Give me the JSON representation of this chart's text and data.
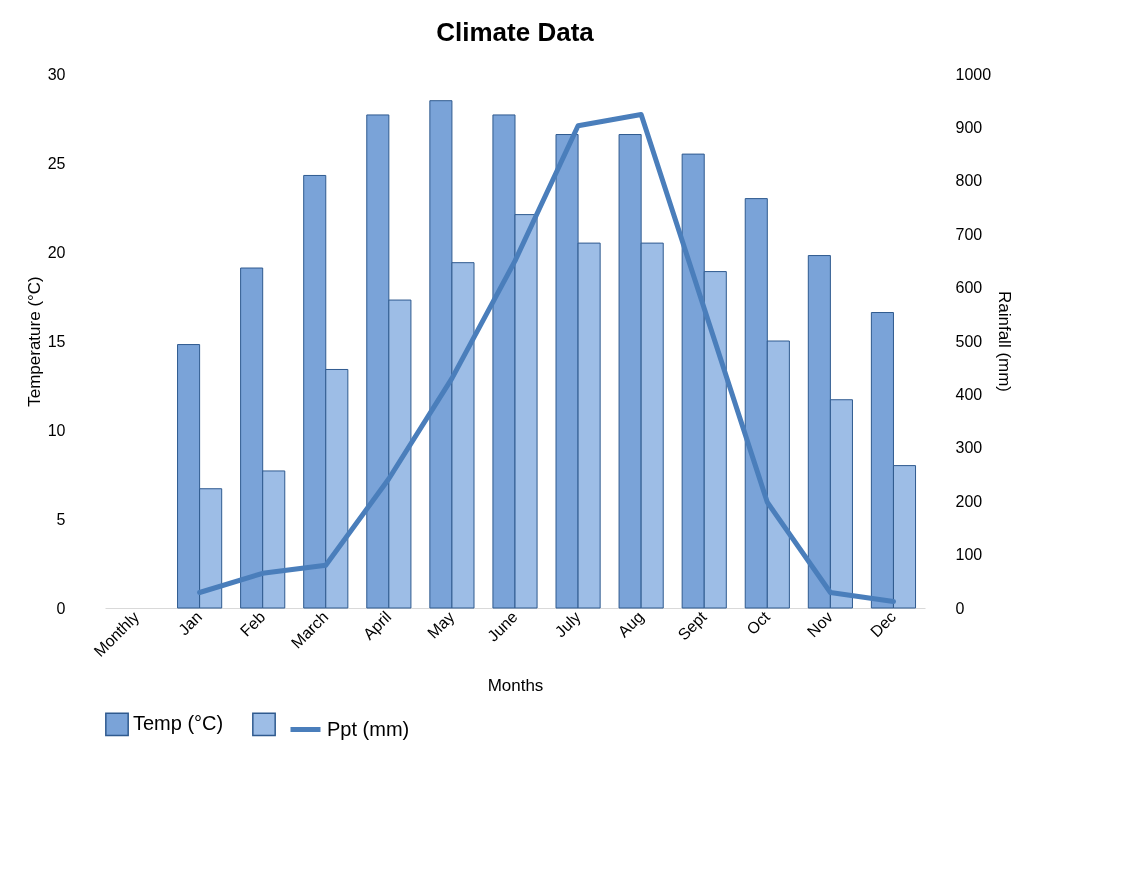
{
  "chart_data": {
    "type": "bar",
    "title": "Climate Data",
    "xlabel": "Months",
    "ylabel": "Temperature (°C)",
    "y2label": "Rainfall (mm)",
    "categories": [
      "Monthly",
      "Jan",
      "Feb",
      "March",
      "April",
      "May",
      "June",
      "July",
      "Aug",
      "Sept",
      "Oct",
      "Nov",
      "Dec"
    ],
    "series": [
      {
        "name": "Temp (°C)",
        "color": "#7aa3d8",
        "values": [
          null,
          14.8,
          19.1,
          24.3,
          27.7,
          28.5,
          27.7,
          26.6,
          26.6,
          25.5,
          23.0,
          19.8,
          16.6
        ]
      },
      {
        "color": "#9dbde6",
        "values": [
          null,
          6.7,
          7.7,
          13.4,
          17.3,
          19.4,
          22.1,
          20.5,
          20.5,
          18.9,
          15.0,
          11.7,
          8.0
        ]
      },
      {
        "name": "Ppt (mm)",
        "type": "line",
        "axis": "y2",
        "color": "#4a7ebb",
        "values": [
          null,
          29,
          65,
          80,
          242,
          430,
          650,
          903,
          924,
          561,
          198,
          29,
          12
        ]
      }
    ],
    "ylim": [
      0,
      30
    ],
    "yticks": [
      0,
      5,
      10,
      15,
      20,
      25,
      30
    ],
    "y2lim": [
      0,
      1000
    ],
    "y2ticks": [
      0,
      100,
      200,
      300,
      400,
      500,
      600,
      700,
      800,
      900,
      {
        "value": 1000,
        "label": "1000"
      }
    ],
    "grid": false,
    "legend": "bottom"
  }
}
